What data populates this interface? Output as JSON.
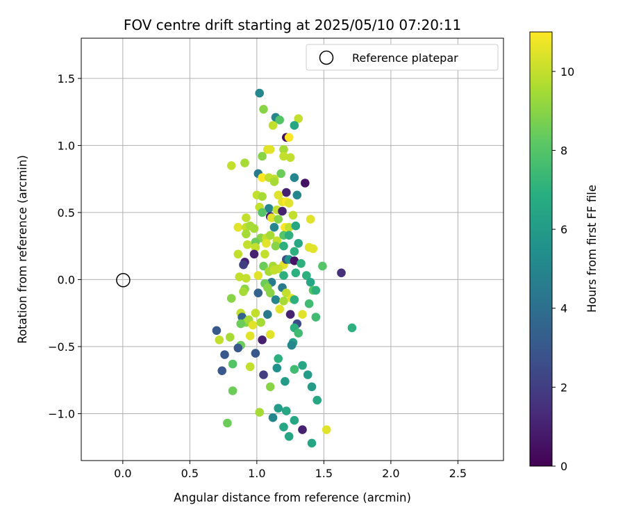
{
  "chart_data": {
    "type": "scatter",
    "title": "FOV centre drift starting at 2025/05/10 07:20:11",
    "xlabel": "Angular distance from reference (arcmin)",
    "ylabel": "Rotation from reference (arcmin)",
    "xlim": [
      -0.31,
      2.84
    ],
    "ylim": [
      -1.35,
      1.8
    ],
    "xticks": [
      0.0,
      0.5,
      1.0,
      1.5,
      2.0,
      2.5
    ],
    "xtick_labels": [
      "0.0",
      "0.5",
      "1.0",
      "1.5",
      "2.0",
      "2.5"
    ],
    "yticks": [
      -1.0,
      -0.5,
      0.0,
      0.5,
      1.0,
      1.5
    ],
    "ytick_labels": [
      "−1.0",
      "−0.5",
      "0.0",
      "0.5",
      "1.0",
      "1.5"
    ],
    "grid": true,
    "legend": {
      "placement": "top-right",
      "entries": [
        "Reference platepar"
      ]
    },
    "reference_point": {
      "x": 0.0,
      "y": 0.0
    },
    "colorbar": {
      "label": "Hours from first FF file",
      "min": 0,
      "max": 11,
      "ticks": [
        0,
        2,
        4,
        6,
        8,
        10
      ],
      "tick_labels": [
        "0",
        "2",
        "4",
        "6",
        "8",
        "10"
      ],
      "colormap": "viridis"
    },
    "points": [
      {
        "x": 1.02,
        "y": 1.39,
        "c": 5.0
      },
      {
        "x": 1.05,
        "y": 1.27,
        "c": 9.0
      },
      {
        "x": 1.14,
        "y": 1.21,
        "c": 5.0
      },
      {
        "x": 1.17,
        "y": 1.19,
        "c": 8.0
      },
      {
        "x": 1.31,
        "y": 1.2,
        "c": 10.0
      },
      {
        "x": 1.28,
        "y": 1.15,
        "c": 6.5
      },
      {
        "x": 1.12,
        "y": 1.15,
        "c": 10.0
      },
      {
        "x": 1.22,
        "y": 1.06,
        "c": 0.5
      },
      {
        "x": 1.24,
        "y": 1.06,
        "c": 11.0
      },
      {
        "x": 1.08,
        "y": 0.97,
        "c": 10.5
      },
      {
        "x": 1.2,
        "y": 0.97,
        "c": 9.5
      },
      {
        "x": 1.1,
        "y": 0.97,
        "c": 10.5
      },
      {
        "x": 1.04,
        "y": 0.92,
        "c": 9.0
      },
      {
        "x": 1.2,
        "y": 0.92,
        "c": 10.0
      },
      {
        "x": 1.25,
        "y": 0.91,
        "c": 10.0
      },
      {
        "x": 0.81,
        "y": 0.85,
        "c": 10.0
      },
      {
        "x": 0.91,
        "y": 0.87,
        "c": 9.5
      },
      {
        "x": 1.01,
        "y": 0.79,
        "c": 4.5
      },
      {
        "x": 1.18,
        "y": 0.79,
        "c": 8.5
      },
      {
        "x": 1.04,
        "y": 0.76,
        "c": 11.0
      },
      {
        "x": 1.09,
        "y": 0.76,
        "c": 10.0
      },
      {
        "x": 1.13,
        "y": 0.75,
        "c": 10.0
      },
      {
        "x": 1.13,
        "y": 0.73,
        "c": 9.5
      },
      {
        "x": 1.28,
        "y": 0.76,
        "c": 5.0
      },
      {
        "x": 1.36,
        "y": 0.72,
        "c": 0.5
      },
      {
        "x": 1.22,
        "y": 0.65,
        "c": 1.0
      },
      {
        "x": 1.0,
        "y": 0.63,
        "c": 10.0
      },
      {
        "x": 1.04,
        "y": 0.62,
        "c": 9.5
      },
      {
        "x": 1.16,
        "y": 0.63,
        "c": 10.5
      },
      {
        "x": 1.3,
        "y": 0.63,
        "c": 5.0
      },
      {
        "x": 1.19,
        "y": 0.58,
        "c": 10.5
      },
      {
        "x": 1.22,
        "y": 0.58,
        "c": 11.0
      },
      {
        "x": 1.02,
        "y": 0.54,
        "c": 10.0
      },
      {
        "x": 1.09,
        "y": 0.53,
        "c": 5.0
      },
      {
        "x": 1.15,
        "y": 0.52,
        "c": 10.0
      },
      {
        "x": 1.19,
        "y": 0.51,
        "c": 1.0
      },
      {
        "x": 1.24,
        "y": 0.57,
        "c": 10.5
      },
      {
        "x": 1.04,
        "y": 0.5,
        "c": 8.0
      },
      {
        "x": 1.1,
        "y": 0.47,
        "c": 1.0
      },
      {
        "x": 1.11,
        "y": 0.46,
        "c": 10.5
      },
      {
        "x": 1.16,
        "y": 0.45,
        "c": 9.0
      },
      {
        "x": 1.27,
        "y": 0.48,
        "c": 10.0
      },
      {
        "x": 1.4,
        "y": 0.45,
        "c": 10.5
      },
      {
        "x": 0.92,
        "y": 0.46,
        "c": 10.0
      },
      {
        "x": 0.86,
        "y": 0.39,
        "c": 10.5
      },
      {
        "x": 0.92,
        "y": 0.39,
        "c": 10.0
      },
      {
        "x": 0.95,
        "y": 0.4,
        "c": 9.5
      },
      {
        "x": 0.98,
        "y": 0.38,
        "c": 9.5
      },
      {
        "x": 1.13,
        "y": 0.39,
        "c": 5.0
      },
      {
        "x": 1.21,
        "y": 0.39,
        "c": 11.0
      },
      {
        "x": 1.24,
        "y": 0.39,
        "c": 10.0
      },
      {
        "x": 1.29,
        "y": 0.4,
        "c": 6.5
      },
      {
        "x": 0.92,
        "y": 0.34,
        "c": 9.5
      },
      {
        "x": 1.03,
        "y": 0.31,
        "c": 9.0
      },
      {
        "x": 1.07,
        "y": 0.31,
        "c": 10.0
      },
      {
        "x": 1.1,
        "y": 0.33,
        "c": 9.5
      },
      {
        "x": 1.15,
        "y": 0.29,
        "c": 10.0
      },
      {
        "x": 1.2,
        "y": 0.33,
        "c": 8.0
      },
      {
        "x": 1.24,
        "y": 0.33,
        "c": 7.0
      },
      {
        "x": 0.99,
        "y": 0.28,
        "c": 8.5
      },
      {
        "x": 1.07,
        "y": 0.27,
        "c": 10.5
      },
      {
        "x": 1.14,
        "y": 0.25,
        "c": 9.0
      },
      {
        "x": 1.2,
        "y": 0.25,
        "c": 7.0
      },
      {
        "x": 1.31,
        "y": 0.27,
        "c": 6.5
      },
      {
        "x": 0.93,
        "y": 0.26,
        "c": 10.0
      },
      {
        "x": 0.99,
        "y": 0.24,
        "c": 10.0
      },
      {
        "x": 1.39,
        "y": 0.24,
        "c": 10.5
      },
      {
        "x": 1.42,
        "y": 0.23,
        "c": 10.5
      },
      {
        "x": 0.86,
        "y": 0.19,
        "c": 10.0
      },
      {
        "x": 0.98,
        "y": 0.19,
        "c": 1.0
      },
      {
        "x": 1.06,
        "y": 0.19,
        "c": 10.0
      },
      {
        "x": 1.28,
        "y": 0.21,
        "c": 7.0
      },
      {
        "x": 0.91,
        "y": 0.13,
        "c": 1.0
      },
      {
        "x": 0.9,
        "y": 0.11,
        "c": 2.0
      },
      {
        "x": 1.05,
        "y": 0.1,
        "c": 8.5
      },
      {
        "x": 1.12,
        "y": 0.1,
        "c": 9.5
      },
      {
        "x": 1.2,
        "y": 0.11,
        "c": 10.5
      },
      {
        "x": 1.22,
        "y": 0.15,
        "c": 2.5
      },
      {
        "x": 1.24,
        "y": 0.15,
        "c": 5.5
      },
      {
        "x": 1.28,
        "y": 0.14,
        "c": 0.5
      },
      {
        "x": 1.33,
        "y": 0.12,
        "c": 7.0
      },
      {
        "x": 1.49,
        "y": 0.1,
        "c": 8.0
      },
      {
        "x": 1.63,
        "y": 0.05,
        "c": 1.5
      },
      {
        "x": 1.09,
        "y": 0.06,
        "c": 9.5
      },
      {
        "x": 1.13,
        "y": 0.07,
        "c": 10.0
      },
      {
        "x": 1.16,
        "y": 0.08,
        "c": 10.0
      },
      {
        "x": 1.2,
        "y": 0.03,
        "c": 7.0
      },
      {
        "x": 1.29,
        "y": 0.05,
        "c": 7.0
      },
      {
        "x": 1.37,
        "y": 0.03,
        "c": 7.0
      },
      {
        "x": 0.87,
        "y": 0.02,
        "c": 10.0
      },
      {
        "x": 0.92,
        "y": 0.01,
        "c": 10.0
      },
      {
        "x": 1.01,
        "y": 0.03,
        "c": 10.5
      },
      {
        "x": 1.11,
        "y": -0.02,
        "c": 4.5
      },
      {
        "x": 1.4,
        "y": -0.02,
        "c": 6.5
      },
      {
        "x": 1.06,
        "y": -0.03,
        "c": 8.5
      },
      {
        "x": 0.91,
        "y": -0.07,
        "c": 9.0
      },
      {
        "x": 1.08,
        "y": -0.06,
        "c": 9.0
      },
      {
        "x": 1.19,
        "y": -0.06,
        "c": 4.5
      },
      {
        "x": 1.42,
        "y": -0.08,
        "c": 8.0
      },
      {
        "x": 1.44,
        "y": -0.08,
        "c": 7.0
      },
      {
        "x": 0.9,
        "y": -0.09,
        "c": 9.5
      },
      {
        "x": 1.01,
        "y": -0.1,
        "c": 3.5
      },
      {
        "x": 1.1,
        "y": -0.1,
        "c": 9.0
      },
      {
        "x": 1.22,
        "y": -0.1,
        "c": 10.0
      },
      {
        "x": 0.81,
        "y": -0.14,
        "c": 9.0
      },
      {
        "x": 1.14,
        "y": -0.15,
        "c": 5.0
      },
      {
        "x": 1.2,
        "y": -0.16,
        "c": 9.5
      },
      {
        "x": 1.26,
        "y": -0.14,
        "c": 10.5
      },
      {
        "x": 1.28,
        "y": -0.15,
        "c": 7.0
      },
      {
        "x": 1.39,
        "y": -0.18,
        "c": 7.5
      },
      {
        "x": 1.17,
        "y": -0.22,
        "c": 10.5
      },
      {
        "x": 0.88,
        "y": -0.25,
        "c": 10.0
      },
      {
        "x": 0.99,
        "y": -0.25,
        "c": 10.0
      },
      {
        "x": 1.08,
        "y": -0.26,
        "c": 4.5
      },
      {
        "x": 1.25,
        "y": -0.26,
        "c": 1.0
      },
      {
        "x": 1.34,
        "y": -0.26,
        "c": 10.5
      },
      {
        "x": 1.44,
        "y": -0.28,
        "c": 7.5
      },
      {
        "x": 0.89,
        "y": -0.28,
        "c": 3.5
      },
      {
        "x": 0.92,
        "y": -0.32,
        "c": 9.0
      },
      {
        "x": 0.88,
        "y": -0.33,
        "c": 8.5
      },
      {
        "x": 0.94,
        "y": -0.3,
        "c": 9.5
      },
      {
        "x": 0.97,
        "y": -0.34,
        "c": 10.5
      },
      {
        "x": 1.03,
        "y": -0.32,
        "c": 9.5
      },
      {
        "x": 1.3,
        "y": -0.33,
        "c": 2.5
      },
      {
        "x": 1.28,
        "y": -0.36,
        "c": 7.0
      },
      {
        "x": 1.71,
        "y": -0.36,
        "c": 7.0
      },
      {
        "x": 0.7,
        "y": -0.38,
        "c": 3.0
      },
      {
        "x": 0.72,
        "y": -0.45,
        "c": 10.0
      },
      {
        "x": 0.8,
        "y": -0.43,
        "c": 9.5
      },
      {
        "x": 0.95,
        "y": -0.42,
        "c": 10.5
      },
      {
        "x": 1.1,
        "y": -0.41,
        "c": 10.5
      },
      {
        "x": 1.31,
        "y": -0.4,
        "c": 7.5
      },
      {
        "x": 1.04,
        "y": -0.45,
        "c": 1.0
      },
      {
        "x": 1.27,
        "y": -0.47,
        "c": 6.0
      },
      {
        "x": 0.88,
        "y": -0.49,
        "c": 8.5
      },
      {
        "x": 1.26,
        "y": -0.49,
        "c": 5.0
      },
      {
        "x": 0.86,
        "y": -0.51,
        "c": 3.0
      },
      {
        "x": 0.99,
        "y": -0.55,
        "c": 3.0
      },
      {
        "x": 0.76,
        "y": -0.56,
        "c": 3.0
      },
      {
        "x": 1.16,
        "y": -0.59,
        "c": 7.0
      },
      {
        "x": 0.82,
        "y": -0.63,
        "c": 8.0
      },
      {
        "x": 0.95,
        "y": -0.65,
        "c": 10.0
      },
      {
        "x": 1.15,
        "y": -0.66,
        "c": 5.5
      },
      {
        "x": 1.34,
        "y": -0.64,
        "c": 6.5
      },
      {
        "x": 1.28,
        "y": -0.67,
        "c": 7.5
      },
      {
        "x": 0.74,
        "y": -0.68,
        "c": 3.0
      },
      {
        "x": 1.38,
        "y": -0.71,
        "c": 6.0
      },
      {
        "x": 1.05,
        "y": -0.71,
        "c": 2.0
      },
      {
        "x": 1.21,
        "y": -0.76,
        "c": 6.0
      },
      {
        "x": 1.41,
        "y": -0.8,
        "c": 6.0
      },
      {
        "x": 1.1,
        "y": -0.8,
        "c": 9.0
      },
      {
        "x": 0.82,
        "y": -0.83,
        "c": 8.5
      },
      {
        "x": 1.45,
        "y": -0.9,
        "c": 6.5
      },
      {
        "x": 1.16,
        "y": -0.96,
        "c": 6.0
      },
      {
        "x": 1.22,
        "y": -0.98,
        "c": 6.5
      },
      {
        "x": 1.02,
        "y": -0.99,
        "c": 9.5
      },
      {
        "x": 1.12,
        "y": -1.03,
        "c": 5.0
      },
      {
        "x": 1.28,
        "y": -1.05,
        "c": 6.5
      },
      {
        "x": 0.78,
        "y": -1.07,
        "c": 8.5
      },
      {
        "x": 1.2,
        "y": -1.1,
        "c": 6.5
      },
      {
        "x": 1.34,
        "y": -1.12,
        "c": 1.0
      },
      {
        "x": 1.52,
        "y": -1.12,
        "c": 10.5
      },
      {
        "x": 1.24,
        "y": -1.17,
        "c": 6.5
      },
      {
        "x": 1.41,
        "y": -1.22,
        "c": 6.5
      }
    ]
  }
}
